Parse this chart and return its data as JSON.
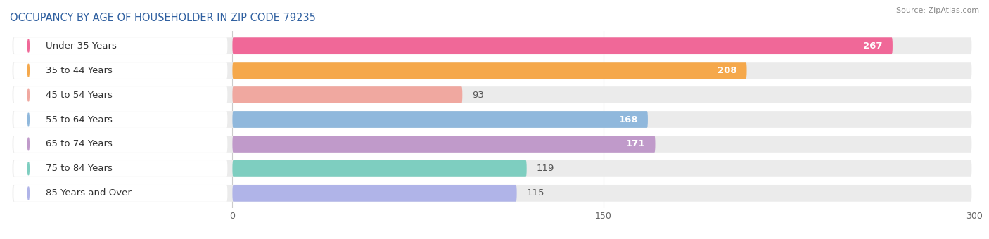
{
  "title": "OCCUPANCY BY AGE OF HOUSEHOLDER IN ZIP CODE 79235",
  "source": "Source: ZipAtlas.com",
  "categories": [
    "Under 35 Years",
    "35 to 44 Years",
    "45 to 54 Years",
    "55 to 64 Years",
    "65 to 74 Years",
    "75 to 84 Years",
    "85 Years and Over"
  ],
  "values": [
    267,
    208,
    93,
    168,
    171,
    119,
    115
  ],
  "bar_colors": [
    "#F06898",
    "#F5A84B",
    "#F0A8A0",
    "#90B8DC",
    "#C09ACA",
    "#7ECEC0",
    "#B0B4E8"
  ],
  "dot_colors": [
    "#F06898",
    "#F5A84B",
    "#F0A8A0",
    "#90B8DC",
    "#C09ACA",
    "#7ECEC0",
    "#B0B4E8"
  ],
  "xlim_data": [
    0,
    300
  ],
  "xticks": [
    0,
    150,
    300
  ],
  "bar_height": 0.68,
  "background_color": "#ffffff",
  "bar_bg_color": "#ebebeb",
  "label_fontsize": 9.5,
  "title_fontsize": 10.5,
  "value_label_large_threshold": 150,
  "title_color": "#3060A0",
  "source_color": "#888888"
}
